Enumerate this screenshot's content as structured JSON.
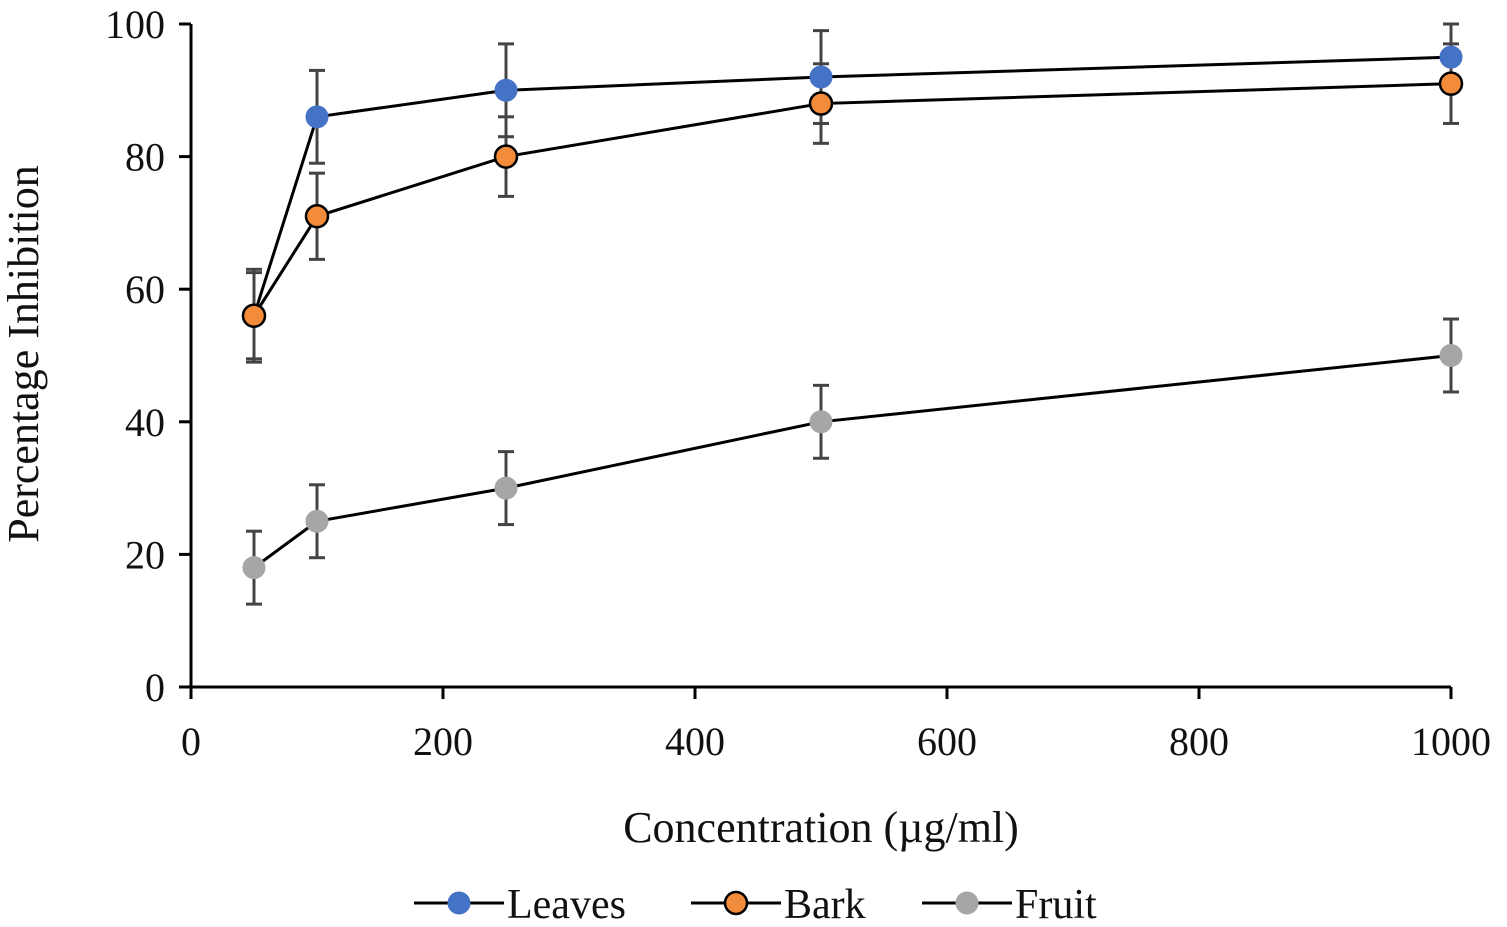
{
  "chart_data": {
    "type": "line",
    "xlabel": "Concentration (µg/ml)",
    "ylabel": "Percentage Inhibition",
    "xlim": [
      0,
      1000
    ],
    "ylim": [
      0,
      100
    ],
    "xticks": [
      0,
      200,
      400,
      600,
      800,
      1000
    ],
    "yticks": [
      0,
      20,
      40,
      60,
      80,
      100
    ],
    "xtick_labels": [
      "0",
      "200",
      "400",
      "600",
      "800",
      "1000"
    ],
    "ytick_labels": [
      "0",
      "20",
      "40",
      "60",
      "80",
      "100"
    ],
    "grid": false,
    "legend_position": "bottom",
    "x": [
      50,
      100,
      250,
      500,
      1000
    ],
    "series": [
      {
        "name": "Leaves",
        "color": "#4472C4",
        "edge": "#4472C4",
        "values": [
          56,
          86,
          90,
          92,
          95
        ],
        "errors": [
          7,
          7,
          7,
          7,
          5
        ]
      },
      {
        "name": "Bark",
        "color": "#F28C3B",
        "edge": "#000000",
        "values": [
          56,
          71,
          80,
          88,
          91
        ],
        "errors": [
          6.5,
          6.5,
          6,
          6,
          6
        ]
      },
      {
        "name": "Fruit",
        "color": "#A6A6A6",
        "edge": "#A6A6A6",
        "values": [
          18,
          25,
          30,
          40,
          50
        ],
        "errors": [
          5.5,
          5.5,
          5.5,
          5.5,
          5.5
        ]
      }
    ]
  }
}
